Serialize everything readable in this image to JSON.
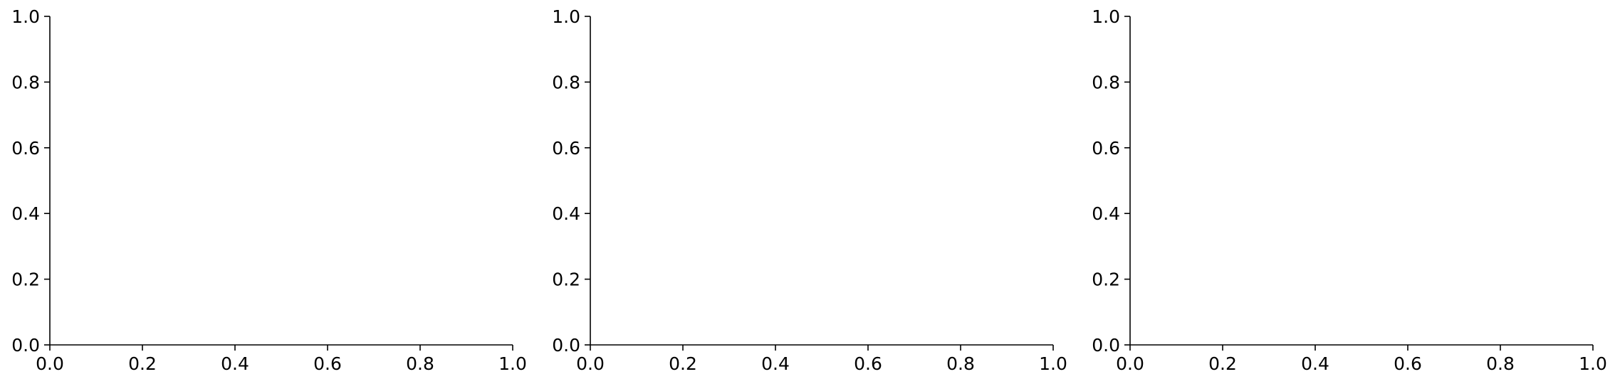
{
  "chart_data": [
    {
      "type": "scatter",
      "title": "",
      "xlabel": "",
      "ylabel": "",
      "xlim": [
        0.0,
        1.0
      ],
      "ylim": [
        0.0,
        1.0
      ],
      "xticks": [
        "0.0",
        "0.2",
        "0.4",
        "0.6",
        "0.8",
        "1.0"
      ],
      "yticks": [
        "0.0",
        "0.2",
        "0.4",
        "0.6",
        "0.8",
        "1.0"
      ],
      "series": [],
      "grid": false,
      "spines": "left-bottom"
    },
    {
      "type": "scatter",
      "title": "",
      "xlabel": "",
      "ylabel": "",
      "xlim": [
        0.0,
        1.0
      ],
      "ylim": [
        0.0,
        1.0
      ],
      "xticks": [
        "0.0",
        "0.2",
        "0.4",
        "0.6",
        "0.8",
        "1.0"
      ],
      "yticks": [
        "0.0",
        "0.2",
        "0.4",
        "0.6",
        "0.8",
        "1.0"
      ],
      "series": [],
      "grid": false,
      "spines": "left-bottom"
    },
    {
      "type": "scatter",
      "title": "",
      "xlabel": "",
      "ylabel": "",
      "xlim": [
        0.0,
        1.0
      ],
      "ylim": [
        0.0,
        1.0
      ],
      "xticks": [
        "0.0",
        "0.2",
        "0.4",
        "0.6",
        "0.8",
        "1.0"
      ],
      "yticks": [
        "0.0",
        "0.2",
        "0.4",
        "0.6",
        "0.8",
        "1.0"
      ],
      "series": [],
      "grid": false,
      "spines": "left-bottom"
    }
  ],
  "colors": {
    "axis": "#000000",
    "background": "#ffffff"
  }
}
